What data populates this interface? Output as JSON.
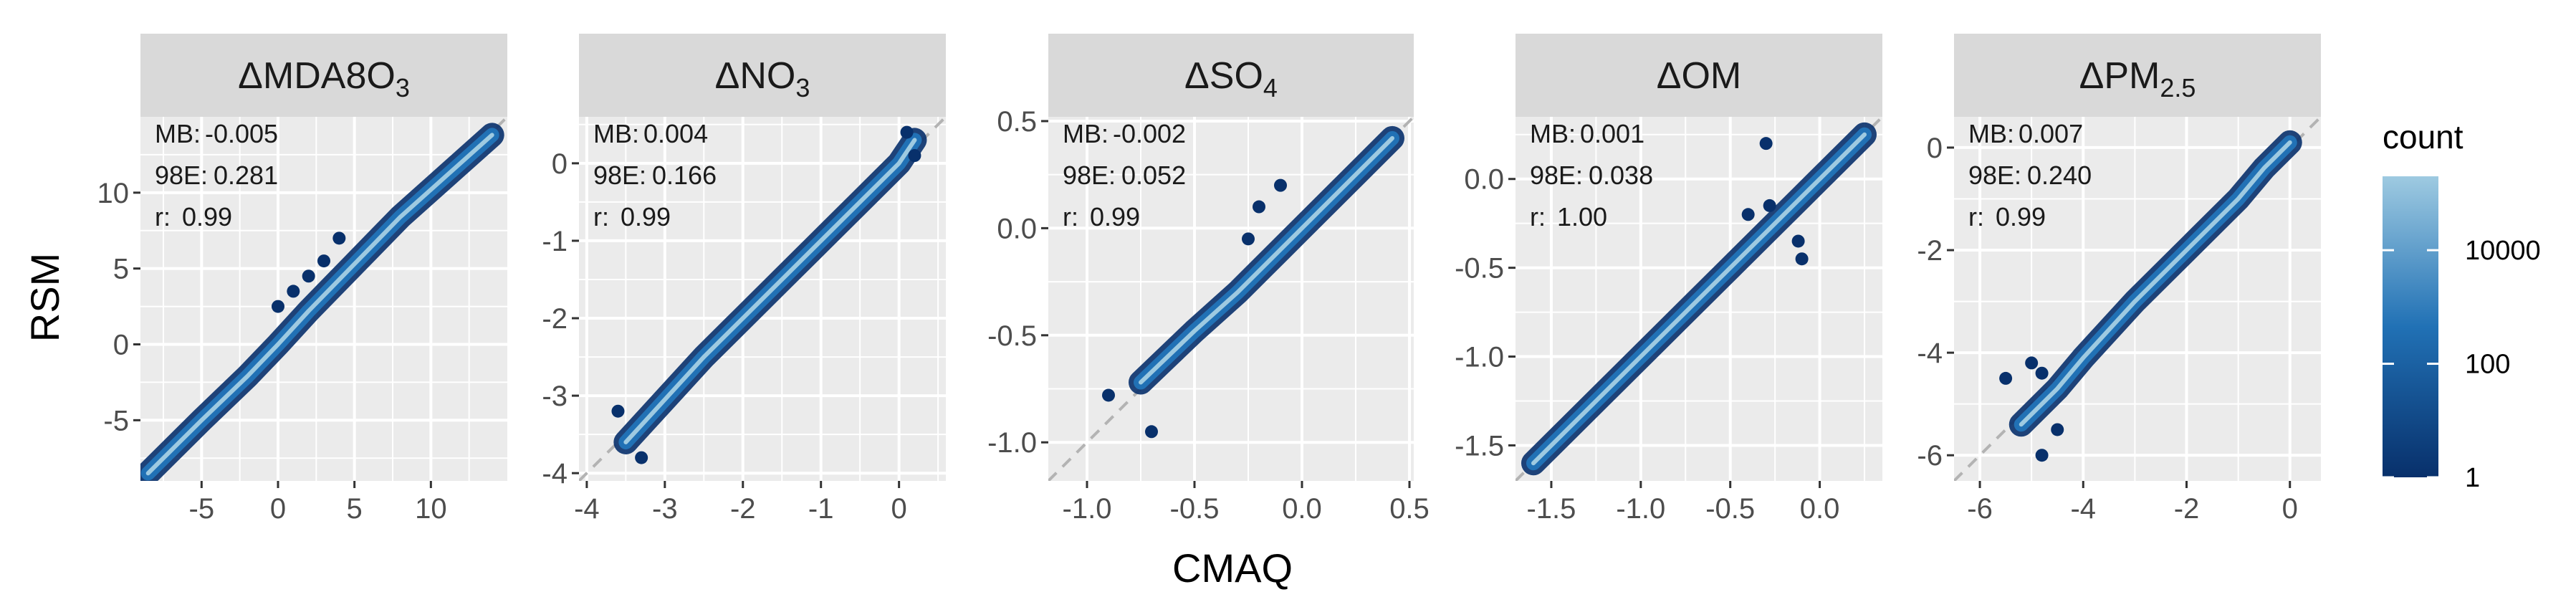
{
  "figure": {
    "xlabel": "CMAQ",
    "ylabel": "RSM",
    "legend": {
      "title": "count",
      "labels": [
        "10000",
        "100",
        "1"
      ],
      "values": [
        10000,
        100,
        1
      ],
      "max": 200000,
      "min": 1
    },
    "colors": {
      "panel_bg": "#ebebeb",
      "strip_bg": "#d9d9d9",
      "grid": "#ffffff",
      "identity_line": "#b3b3b3",
      "dense": "#9ecae1",
      "mid": "#2171b5",
      "sparse": "#08306b"
    }
  },
  "chart_data": [
    {
      "type": "scatter",
      "density": "hex-binned count",
      "title": "ΔMDA8O3",
      "title_main": "ΔMDA8O",
      "title_sub": "3",
      "xlim": [
        -9,
        15
      ],
      "ylim": [
        -9,
        15
      ],
      "xticks": [
        -5,
        0,
        5,
        10
      ],
      "xtick_labels": [
        "-5",
        "0",
        "5",
        "10"
      ],
      "yticks": [
        -5,
        0,
        5,
        10
      ],
      "ytick_labels": [
        "-5",
        "0",
        "5",
        "10"
      ],
      "stats": {
        "mb_label": "MB:",
        "mb": "-0.005",
        "e98_label": "98E:",
        "e98": "0.281",
        "r_label": "r:",
        "r": "0.99"
      },
      "trend": {
        "x": [
          -8.5,
          -5,
          -2,
          0,
          2,
          5,
          8,
          11,
          14
        ],
        "y": [
          -8.5,
          -5,
          -2.1,
          0,
          2.2,
          5.3,
          8.4,
          11.1,
          13.8
        ]
      },
      "outliers": {
        "x": [
          0,
          1,
          2,
          3,
          4
        ],
        "y": [
          2.5,
          3.5,
          4.5,
          5.5,
          7
        ]
      }
    },
    {
      "type": "scatter",
      "density": "hex-binned count",
      "title": "ΔNO3",
      "title_main": "ΔNO",
      "title_sub": "3",
      "xlim": [
        -4.1,
        0.6
      ],
      "ylim": [
        -4.1,
        0.6
      ],
      "xticks": [
        -4,
        -3,
        -2,
        -1,
        0
      ],
      "xtick_labels": [
        "-4",
        "-3",
        "-2",
        "-1",
        "0"
      ],
      "yticks": [
        -4,
        -3,
        -2,
        -1,
        0
      ],
      "ytick_labels": [
        "-4",
        "-3",
        "-2",
        "-1",
        "0"
      ],
      "stats": {
        "mb_label": "MB:",
        "mb": "0.004",
        "e98_label": "98E:",
        "e98": "0.166",
        "r_label": "r:",
        "r": "0.99"
      },
      "trend": {
        "x": [
          -3.5,
          -3,
          -2.5,
          -2,
          -1.5,
          -1,
          -0.5,
          0,
          0.2
        ],
        "y": [
          -3.6,
          -3.05,
          -2.5,
          -2,
          -1.5,
          -1,
          -0.5,
          0,
          0.3
        ]
      },
      "outliers": {
        "x": [
          -3.6,
          -3.3,
          0.1,
          0.2
        ],
        "y": [
          -3.2,
          -3.8,
          0.4,
          0.1
        ]
      }
    },
    {
      "type": "scatter",
      "density": "hex-binned count",
      "title": "ΔSO4",
      "title_main": "ΔSO",
      "title_sub": "4",
      "xlim": [
        -1.18,
        0.52
      ],
      "ylim": [
        -1.18,
        0.52
      ],
      "xticks": [
        -1.0,
        -0.5,
        0.0,
        0.5
      ],
      "xtick_labels": [
        "-1.0",
        "-0.5",
        "0.0",
        "0.5"
      ],
      "yticks": [
        -1.0,
        -0.5,
        0.0,
        0.5
      ],
      "ytick_labels": [
        "-1.0",
        "-0.5",
        "0.0",
        "0.5"
      ],
      "stats": {
        "mb_label": "MB:",
        "mb": "-0.002",
        "e98_label": "98E:",
        "e98": "0.052",
        "r_label": "r:",
        "r": "0.99"
      },
      "trend": {
        "x": [
          -0.75,
          -0.5,
          -0.3,
          -0.1,
          0,
          0.1,
          0.2,
          0.3,
          0.42
        ],
        "y": [
          -0.72,
          -0.48,
          -0.3,
          -0.1,
          0,
          0.1,
          0.2,
          0.3,
          0.42
        ]
      },
      "outliers": {
        "x": [
          -0.9,
          -0.7,
          -0.25,
          -0.1,
          -0.2
        ],
        "y": [
          -0.78,
          -0.95,
          -0.05,
          0.2,
          0.1
        ]
      }
    },
    {
      "type": "scatter",
      "density": "hex-binned count",
      "title": "ΔOM",
      "title_main": "ΔOM",
      "title_sub": "",
      "xlim": [
        -1.7,
        0.35
      ],
      "ylim": [
        -1.7,
        0.35
      ],
      "xticks": [
        -1.5,
        -1.0,
        -0.5,
        0.0
      ],
      "xtick_labels": [
        "-1.5",
        "-1.0",
        "-0.5",
        "0.0"
      ],
      "yticks": [
        -1.5,
        -1.0,
        -0.5,
        0.0
      ],
      "ytick_labels": [
        "-1.5",
        "-1.0",
        "-0.5",
        "0.0"
      ],
      "stats": {
        "mb_label": "MB:",
        "mb": "0.001",
        "e98_label": "98E:",
        "e98": "0.038",
        "r_label": "r:",
        "r": "1.00"
      },
      "trend": {
        "x": [
          -1.6,
          -1.2,
          -0.8,
          -0.5,
          -0.3,
          -0.1,
          0,
          0.1,
          0.25
        ],
        "y": [
          -1.6,
          -1.2,
          -0.8,
          -0.5,
          -0.3,
          -0.1,
          0,
          0.1,
          0.25
        ]
      },
      "outliers": {
        "x": [
          -0.3,
          -0.28,
          -0.12,
          -0.1,
          -0.4
        ],
        "y": [
          0.2,
          -0.15,
          -0.35,
          -0.45,
          -0.2
        ]
      }
    },
    {
      "type": "scatter",
      "density": "hex-binned count",
      "title": "ΔPM2.5",
      "title_main": "ΔPM",
      "title_sub": "2.5",
      "xlim": [
        -6.5,
        0.6
      ],
      "ylim": [
        -6.5,
        0.6
      ],
      "xticks": [
        -6,
        -4,
        -2,
        0
      ],
      "xtick_labels": [
        "-6",
        "-4",
        "-2",
        "0"
      ],
      "yticks": [
        -6,
        -4,
        -2,
        0
      ],
      "ytick_labels": [
        "-6",
        "-4",
        "-2",
        "0"
      ],
      "stats": {
        "mb_label": "MB:",
        "mb": "0.007",
        "e98_label": "98E:",
        "e98": "0.240",
        "r_label": "r:",
        "r": "0.99"
      },
      "trend": {
        "x": [
          -5.2,
          -4.5,
          -4,
          -3,
          -2,
          -1,
          -0.5,
          0
        ],
        "y": [
          -5.4,
          -4.7,
          -4.1,
          -3.0,
          -2.0,
          -1.0,
          -0.4,
          0.1
        ]
      },
      "outliers": {
        "x": [
          -5.5,
          -5,
          -4.8,
          -4.5,
          -4.8
        ],
        "y": [
          -4.5,
          -4.2,
          -6,
          -5.5,
          -4.4
        ]
      }
    }
  ]
}
